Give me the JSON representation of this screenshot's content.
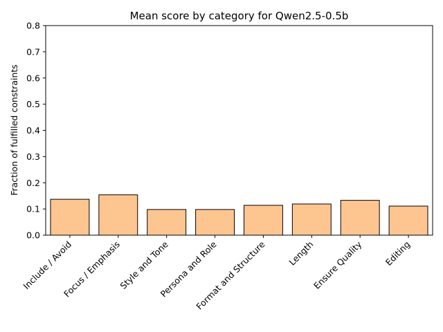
{
  "chart_data": {
    "type": "bar",
    "title": "Mean score by category for Qwen2.5-0.5b",
    "xlabel": "",
    "ylabel": "Fraction of fulfilled constraints",
    "categories": [
      "Include / Avoid",
      "Focus / Emphasis",
      "Style and Tone",
      "Persona and Role",
      "Format and Structure",
      "Length",
      "Ensure Quality",
      "Editing"
    ],
    "values": [
      0.137,
      0.154,
      0.098,
      0.098,
      0.114,
      0.119,
      0.133,
      0.111
    ],
    "ylim": [
      0,
      0.8
    ],
    "yticks": [
      "0.0",
      "0.1",
      "0.2",
      "0.3",
      "0.4",
      "0.5",
      "0.6",
      "0.7",
      "0.8"
    ],
    "bar_color": "#fdc590",
    "bar_edge_color": "#000000",
    "grid": false
  }
}
